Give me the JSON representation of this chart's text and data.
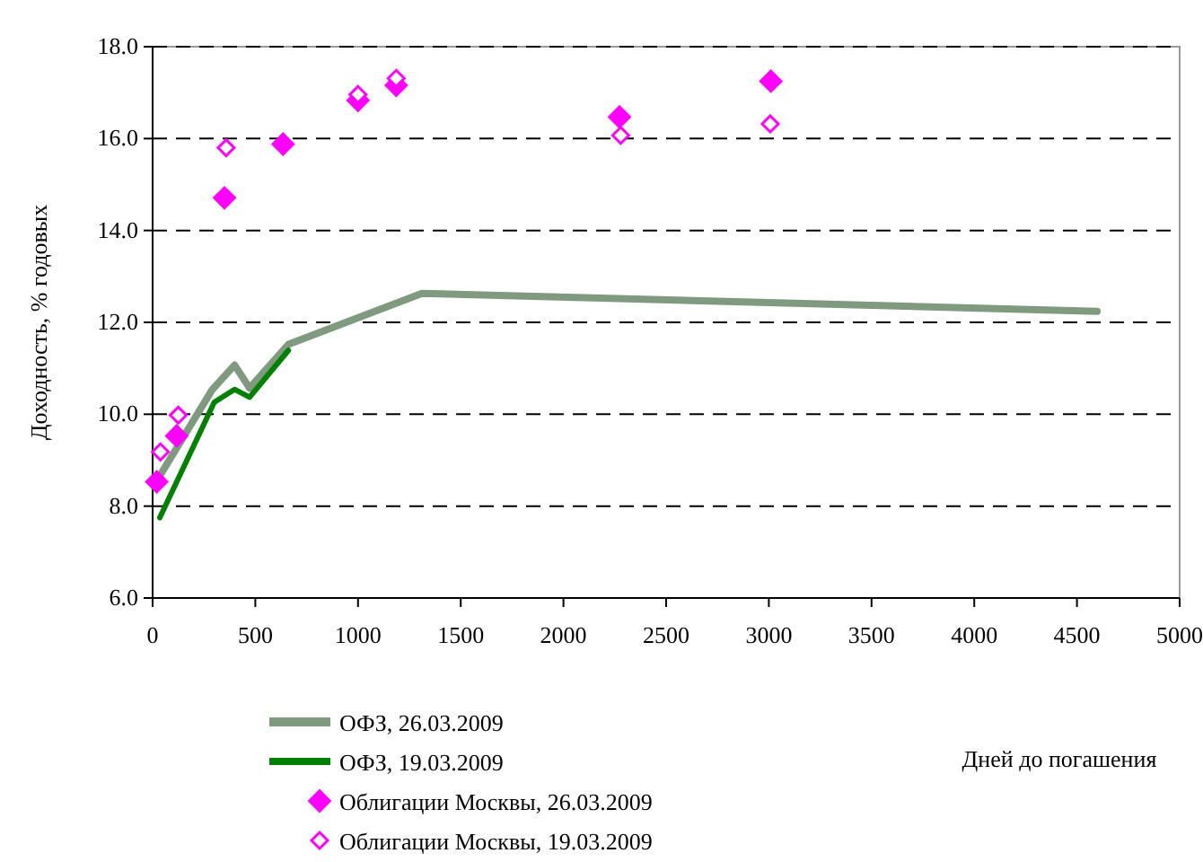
{
  "chart_data": {
    "type": "line",
    "xlabel": "Дней до погашения",
    "ylabel": "Доходность, % годовых",
    "xlim": [
      0,
      5000
    ],
    "xticks": [
      0,
      500,
      1000,
      1500,
      2000,
      2500,
      3000,
      3500,
      4000,
      4500,
      5000
    ],
    "ylim": [
      6,
      18
    ],
    "yticks": [
      {
        "value": 6,
        "label": "6.0"
      },
      {
        "value": 8,
        "label": "8.0"
      },
      {
        "value": 10,
        "label": "10.0"
      },
      {
        "value": 12,
        "label": "12.0"
      },
      {
        "value": 14,
        "label": "14.0"
      },
      {
        "value": 16,
        "label": "16.0"
      },
      {
        "value": 18,
        "label": "18.0"
      }
    ],
    "grid": "y",
    "legend": "bottom",
    "series": [
      {
        "name": "ОФЗ, 26.03.2009",
        "color": "#7f9a7f",
        "x": [
          35,
          291,
          399,
          472,
          661,
          1311,
          4598
        ],
        "values": [
          8.66,
          10.54,
          11.07,
          10.57,
          11.52,
          12.63,
          12.24
        ]
      },
      {
        "name": "ОФЗ, 19.03.2009",
        "color": "#008000",
        "x": [
          35,
          300,
          399,
          472,
          661
        ],
        "values": [
          7.75,
          10.26,
          10.54,
          10.37,
          11.39
        ]
      },
      {
        "name": "Облигации Москвы, 26.03.2009",
        "type": "scatter",
        "marker": "diamond",
        "color": "#ff00ff",
        "x": [
          20,
          117,
          350,
          635,
          1000,
          1186,
          2273,
          3010
        ],
        "values": [
          8.53,
          9.53,
          14.71,
          15.88,
          16.83,
          17.16,
          16.47,
          17.25
        ]
      },
      {
        "name": "Облигации Москвы, 19.03.2009",
        "type": "scatter",
        "marker": "diamond-open",
        "color": "#ff00ff",
        "x": [
          38,
          125,
          358,
          1000,
          1186,
          2279,
          3007
        ],
        "values": [
          9.18,
          9.98,
          15.8,
          16.96,
          17.31,
          16.07,
          16.32
        ]
      }
    ]
  }
}
